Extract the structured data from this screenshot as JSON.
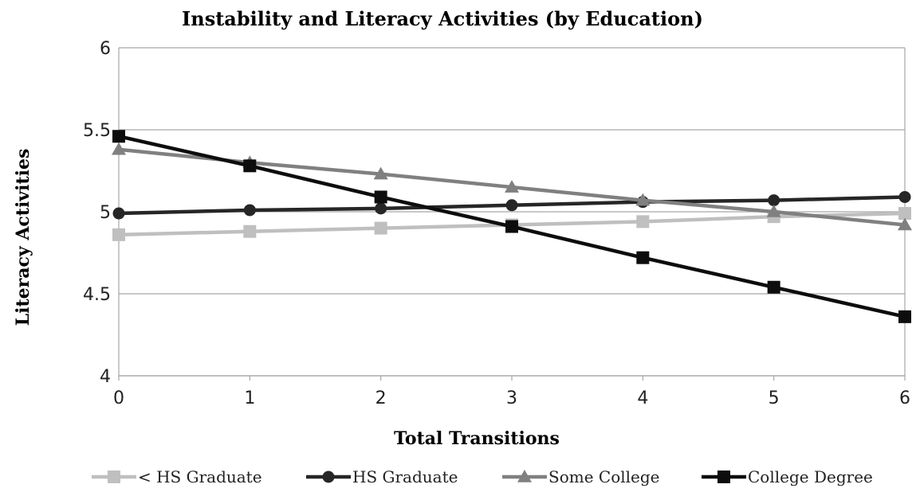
{
  "chart_data": {
    "type": "line",
    "title": "Instability and Literacy Activities (by Education)",
    "xlabel": "Total Transitions",
    "ylabel": "Literacy Activities",
    "x": [
      0,
      1,
      2,
      3,
      4,
      5,
      6
    ],
    "x_tick_labels": [
      "0",
      "1",
      "2",
      "3",
      "4",
      "5",
      "6"
    ],
    "ylim": [
      4,
      6
    ],
    "y_ticks": [
      4,
      4.5,
      5,
      5.5,
      6
    ],
    "y_tick_labels": [
      "4",
      "4.5",
      "5",
      "5.5",
      "6"
    ],
    "grid": true,
    "legend_position": "bottom",
    "series": [
      {
        "name": "< HS Graduate",
        "color": "#bfbfbf",
        "marker": "square",
        "values": [
          4.86,
          4.88,
          4.9,
          4.92,
          4.94,
          4.97,
          4.99
        ]
      },
      {
        "name": "HS Graduate",
        "color": "#262626",
        "marker": "circle",
        "values": [
          4.99,
          5.01,
          5.02,
          5.04,
          5.06,
          5.07,
          5.09
        ]
      },
      {
        "name": "Some College",
        "color": "#808080",
        "marker": "triangle",
        "values": [
          5.38,
          5.3,
          5.23,
          5.15,
          5.07,
          5.0,
          4.92
        ]
      },
      {
        "name": "College Degree",
        "color": "#0d0d0d",
        "marker": "square",
        "values": [
          5.46,
          5.28,
          5.09,
          4.91,
          4.72,
          4.54,
          4.36
        ]
      }
    ]
  }
}
